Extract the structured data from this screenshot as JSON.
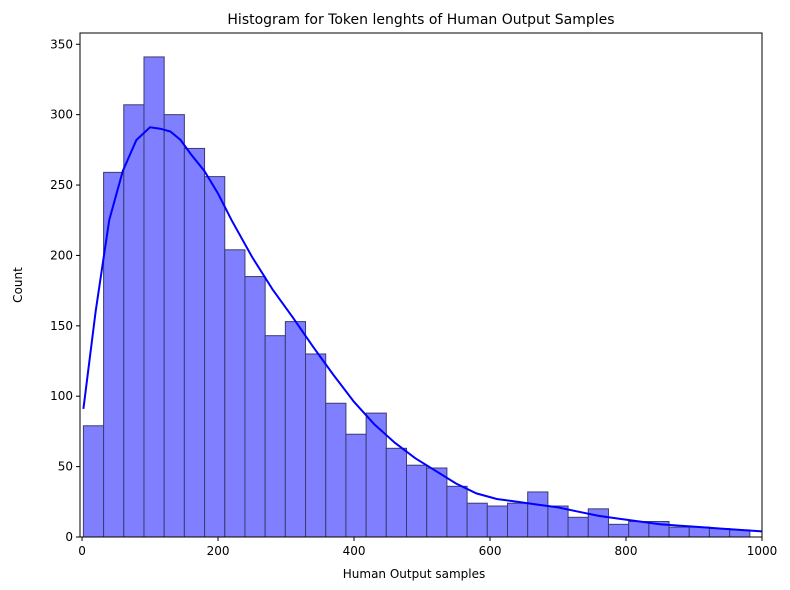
{
  "chart_data": {
    "type": "bar",
    "title": "Histogram for Token lenghts of Human Output Samples",
    "xlabel": "Human Output samples",
    "ylabel": "Count",
    "xlim": [
      -3,
      1000
    ],
    "ylim": [
      0,
      358
    ],
    "xticks": [
      0,
      200,
      400,
      600,
      800,
      1000
    ],
    "yticks": [
      0,
      50,
      100,
      150,
      200,
      250,
      300,
      350
    ],
    "bin_start": 2,
    "bin_width": 29.7,
    "counts": [
      79,
      259,
      307,
      341,
      300,
      276,
      256,
      204,
      185,
      143,
      153,
      130,
      95,
      73,
      88,
      63,
      51,
      49,
      36,
      24,
      22,
      24,
      32,
      22,
      14,
      20,
      9,
      11,
      11,
      7,
      7,
      6,
      5
    ],
    "bar_fill": "#7f7fff",
    "bar_edge": "#3b3b72",
    "kde": {
      "color": "#0000ff",
      "x": [
        2,
        20,
        40,
        60,
        80,
        100,
        115,
        130,
        145,
        160,
        180,
        200,
        220,
        250,
        280,
        310,
        340,
        370,
        400,
        430,
        460,
        490,
        520,
        550,
        580,
        610,
        640,
        670,
        700,
        730,
        760,
        790,
        820,
        850,
        880,
        910,
        940,
        970,
        1000
      ],
      "y": [
        91,
        160,
        225,
        260,
        282,
        291,
        290,
        288,
        282,
        272,
        260,
        244,
        225,
        199,
        176,
        156,
        135,
        115,
        96,
        80,
        67,
        56,
        47,
        38,
        31,
        27,
        25,
        23,
        21,
        18,
        15,
        13,
        11,
        9,
        8,
        7,
        6,
        5,
        4
      ]
    }
  }
}
